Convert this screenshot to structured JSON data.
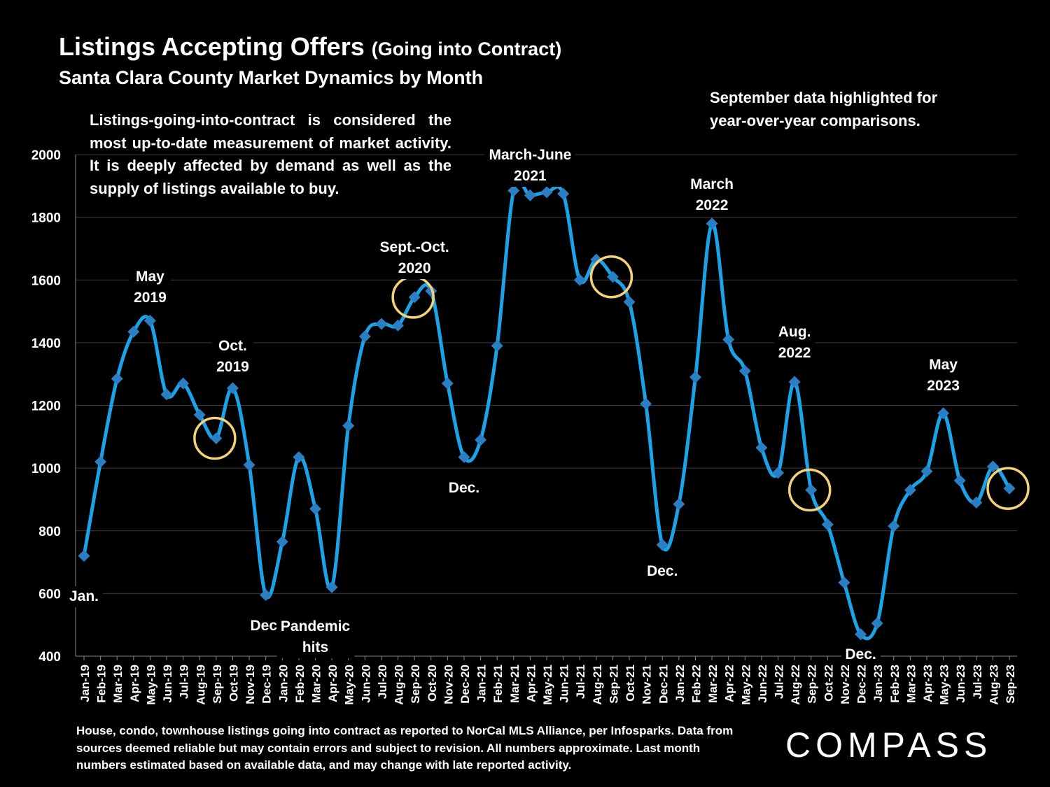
{
  "header": {
    "title": "Listings Accepting Offers",
    "title_paren": "(Going into Contract)",
    "subtitle": "Santa Clara County Market Dynamics by Month"
  },
  "notes": {
    "left": "Listings-going-into-contract is considered the most up-to-date measurement of market activity. It is deeply affected by demand as well as the supply of listings available to buy.",
    "right": "September data highlighted for year-over-year comparisons."
  },
  "footnote": "House, condo, townhouse listings going into contract as reported to NorCal MLS Alliance, per Infosparks. Data from sources deemed reliable but may contain errors and subject to revision. All numbers approximate. Last month numbers estimated based on available data, and may change with late reported activity.",
  "logo": "COMPASS",
  "colors": {
    "line": "#1aa3e8",
    "marker": "#2a7fc4",
    "highlight": "#f5d27a",
    "grid": "#3a3a3a"
  },
  "chart_data": {
    "type": "line",
    "ylim": [
      400,
      2000
    ],
    "yticks": [
      "400",
      "600",
      "800",
      "1000",
      "1200",
      "1400",
      "1600",
      "1800",
      "2000"
    ],
    "grid": true,
    "categories": [
      "Jan-19",
      "Feb-19",
      "Mar-19",
      "Apr-19",
      "May-19",
      "Jun-19",
      "Jul-19",
      "Aug-19",
      "Sep-19",
      "Oct-19",
      "Nov-19",
      "Dec-19",
      "Jan-20",
      "Feb-20",
      "Mar-20",
      "Apr-20",
      "May-20",
      "Jun-20",
      "Jul-20",
      "Aug-20",
      "Sep-20",
      "Oct-20",
      "Nov-20",
      "Dec-20",
      "Jan-21",
      "Feb-21",
      "Mar-21",
      "Apr-21",
      "May-21",
      "Jun-21",
      "Jul-21",
      "Aug-21",
      "Sep-21",
      "Oct-21",
      "Nov-21",
      "Dec-21",
      "Jan-22",
      "Feb-22",
      "Mar-22",
      "Apr-22",
      "May-22",
      "Jun-22",
      "Jul-22",
      "Aug-22",
      "Sep-22",
      "Oct-22",
      "Nov-22",
      "Dec-22",
      "Jan-23",
      "Feb-23",
      "Mar-23",
      "Apr-23",
      "May-23",
      "Jun-23",
      "Jul-23",
      "Aug-23",
      "Sep-23"
    ],
    "values": [
      720,
      1020,
      1285,
      1435,
      1470,
      1235,
      1270,
      1170,
      1095,
      1255,
      1010,
      595,
      765,
      1035,
      870,
      620,
      1135,
      1420,
      1460,
      1455,
      1545,
      1565,
      1270,
      1035,
      1090,
      1390,
      1885,
      1870,
      1880,
      1875,
      1600,
      1665,
      1610,
      1530,
      1205,
      755,
      885,
      1290,
      1780,
      1410,
      1310,
      1065,
      985,
      1275,
      930,
      820,
      635,
      470,
      505,
      815,
      930,
      990,
      1175,
      960,
      890,
      1005,
      935
    ],
    "highlight_categories": [
      "Sep-19",
      "Sep-20",
      "Sep-21",
      "Sep-22",
      "Sep-23"
    ],
    "annotations": [
      {
        "text": "Jan.",
        "category": "Jan-19",
        "value": 590
      },
      {
        "text": "May\n2019",
        "category": "May-19",
        "value": 1575
      },
      {
        "text": "Oct.\n2019",
        "category": "Oct-19",
        "value": 1355
      },
      {
        "text": "Dec.",
        "category": "Dec-19",
        "value": 495
      },
      {
        "text": "Pandemic\nhits",
        "category": "Mar-20",
        "value": 460
      },
      {
        "text": "Sept.-Oct.\n2020",
        "category": "Sep-20",
        "value": 1670
      },
      {
        "text": "Dec.",
        "category": "Dec-20",
        "value": 935
      },
      {
        "text": "March-June\n2021",
        "category": "Apr-21",
        "value": 1965
      },
      {
        "text": "Dec.",
        "category": "Dec-21",
        "value": 670
      },
      {
        "text": "March\n2022",
        "category": "Mar-22",
        "value": 1870
      },
      {
        "text": "Aug.\n2022",
        "category": "Aug-22",
        "value": 1400
      },
      {
        "text": "Dec.",
        "category": "Dec-22",
        "value": 405
      },
      {
        "text": "May\n2023",
        "category": "May-23",
        "value": 1295
      }
    ]
  }
}
